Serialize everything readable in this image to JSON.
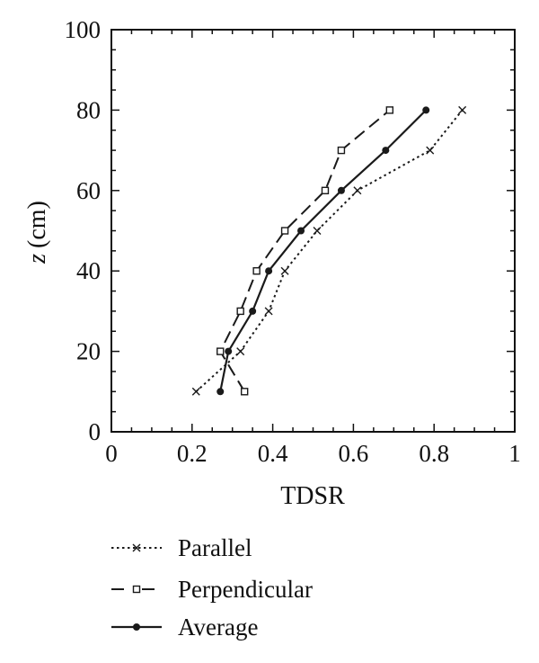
{
  "chart_data": {
    "type": "line",
    "xlabel": "TDSR",
    "ylabel_var": "z",
    "ylabel_unit": "(cm)",
    "xlim": [
      0,
      1
    ],
    "ylim": [
      0,
      100
    ],
    "xticks": [
      0,
      0.2,
      0.4,
      0.6,
      0.8,
      1
    ],
    "xtick_labels": [
      "0",
      "0.2",
      "0.4",
      "0.6",
      "0.8",
      "1"
    ],
    "yticks": [
      0,
      20,
      40,
      60,
      80,
      100
    ],
    "ytick_labels": [
      "0",
      "20",
      "40",
      "60",
      "80",
      "100"
    ],
    "grid": false,
    "legend_position": "bottom",
    "series": [
      {
        "name": "Parallel",
        "style": "dotted",
        "marker": "x",
        "color": "#1a1a1a",
        "points": [
          [
            0.21,
            10
          ],
          [
            0.32,
            20
          ],
          [
            0.39,
            30
          ],
          [
            0.43,
            40
          ],
          [
            0.51,
            50
          ],
          [
            0.61,
            60
          ],
          [
            0.79,
            70
          ],
          [
            0.87,
            80
          ]
        ]
      },
      {
        "name": "Perpendicular",
        "style": "dashed",
        "marker": "square",
        "color": "#1a1a1a",
        "points": [
          [
            0.33,
            10
          ],
          [
            0.27,
            20
          ],
          [
            0.32,
            30
          ],
          [
            0.36,
            40
          ],
          [
            0.43,
            50
          ],
          [
            0.53,
            60
          ],
          [
            0.57,
            70
          ],
          [
            0.69,
            80
          ]
        ]
      },
      {
        "name": "Average",
        "style": "solid",
        "marker": "dot",
        "color": "#1a1a1a",
        "points": [
          [
            0.27,
            10
          ],
          [
            0.29,
            20
          ],
          [
            0.35,
            30
          ],
          [
            0.39,
            40
          ],
          [
            0.47,
            50
          ],
          [
            0.57,
            60
          ],
          [
            0.68,
            70
          ],
          [
            0.78,
            80
          ]
        ]
      }
    ]
  }
}
